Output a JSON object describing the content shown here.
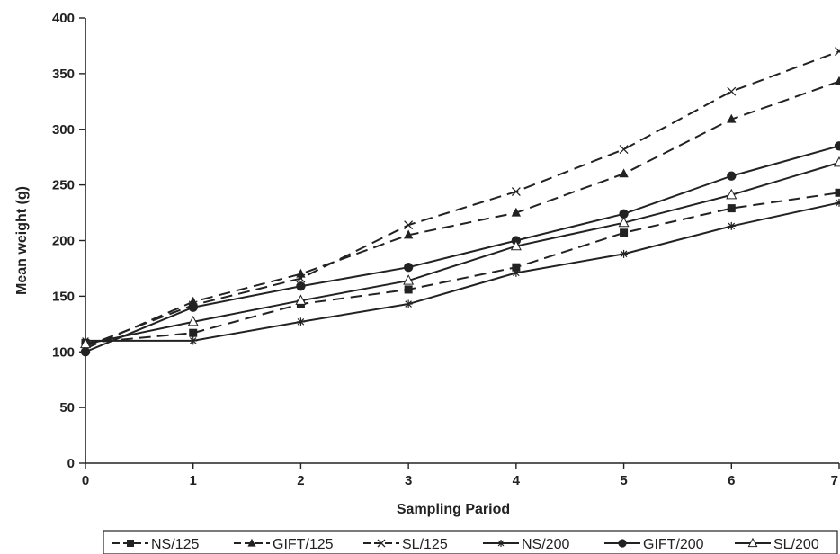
{
  "chart_data": {
    "type": "line",
    "xlabel": "Sampling Pariod",
    "ylabel": "Mean weight (g)",
    "xlim": [
      0,
      7
    ],
    "ylim": [
      0,
      400
    ],
    "x_ticks": [
      "0",
      "1",
      "2",
      "3",
      "4",
      "5",
      "6",
      "7"
    ],
    "y_ticks": [
      "0",
      "50",
      "100",
      "150",
      "200",
      "250",
      "300",
      "350",
      "400"
    ],
    "grid": false,
    "legend_position": "bottom",
    "x": [
      0,
      1,
      2,
      3,
      4,
      5,
      6,
      7
    ],
    "series": [
      {
        "name": "NS/125",
        "marker": "square",
        "dash": "dashed",
        "values": [
          108,
          117,
          143,
          156,
          176,
          207,
          229,
          243
        ]
      },
      {
        "name": "GIFT/125",
        "marker": "filled-triangle",
        "dash": "dashed",
        "values": [
          103,
          145,
          170,
          205,
          225,
          260,
          309,
          343
        ]
      },
      {
        "name": "SL/125",
        "marker": "x",
        "dash": "dashed",
        "values": [
          105,
          142,
          166,
          214,
          244,
          282,
          334,
          370
        ]
      },
      {
        "name": "NS/200",
        "marker": "asterisk",
        "dash": "solid",
        "values": [
          110,
          110,
          127,
          143,
          171,
          188,
          213,
          234
        ]
      },
      {
        "name": "GIFT/200",
        "marker": "filled-circle",
        "dash": "solid",
        "values": [
          100,
          140,
          159,
          176,
          200,
          224,
          258,
          285
        ]
      },
      {
        "name": "SL/200",
        "marker": "open-triangle",
        "dash": "solid",
        "values": [
          107,
          127,
          146,
          164,
          195,
          216,
          241,
          270
        ]
      }
    ]
  }
}
